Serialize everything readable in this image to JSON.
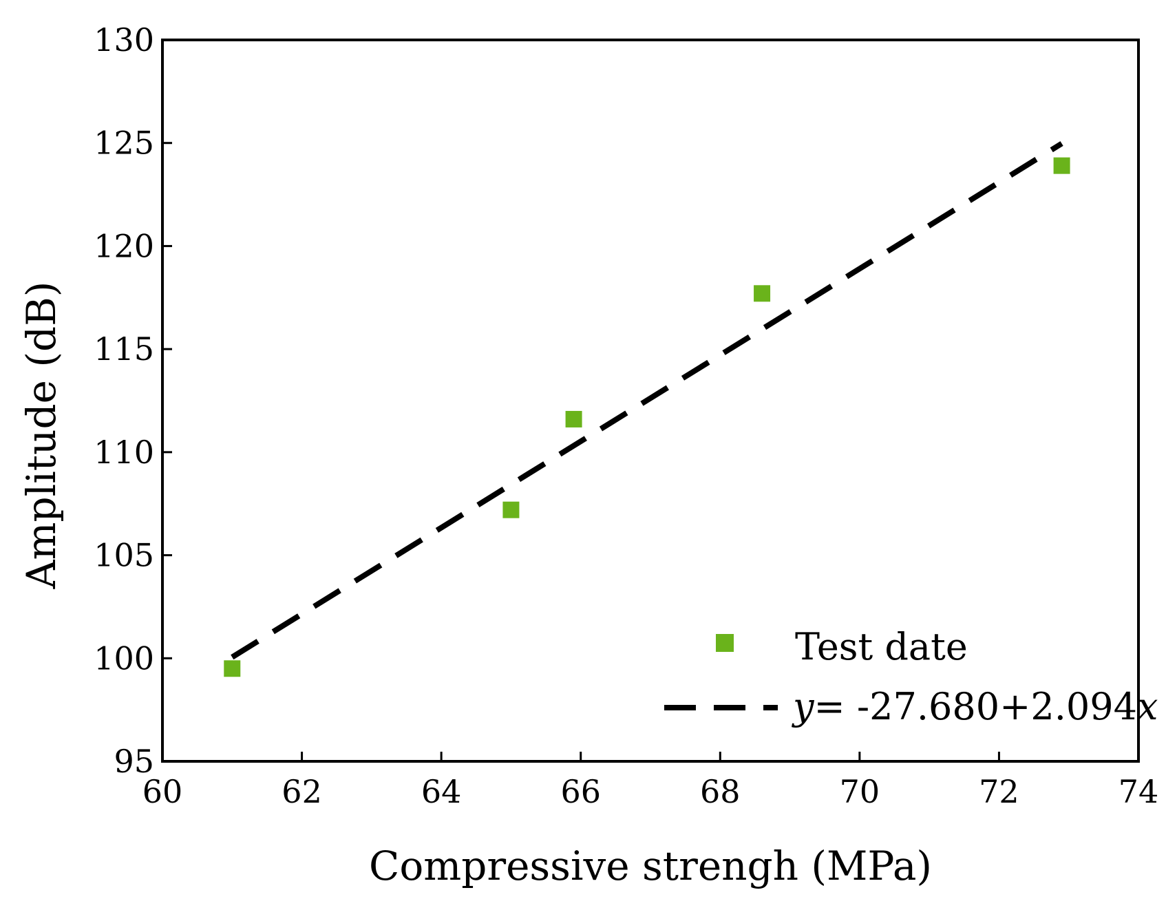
{
  "chart_data": {
    "type": "scatter",
    "xlabel": "Compressive strengh (MPa)",
    "ylabel": "Amplitude (dB)",
    "xlim": [
      60,
      74
    ],
    "ylim": [
      95,
      130
    ],
    "xticks": [
      "60",
      "62",
      "64",
      "66",
      "68",
      "70",
      "72",
      "74"
    ],
    "yticks": [
      "95",
      "100",
      "105",
      "110",
      "115",
      "120",
      "125",
      "130"
    ],
    "series": [
      {
        "name": "Test date",
        "kind": "scatter",
        "marker": "square",
        "color": "#6ab31b",
        "x": [
          61.0,
          65.0,
          65.9,
          68.6,
          72.9
        ],
        "y": [
          99.5,
          107.2,
          111.6,
          117.7,
          123.9
        ]
      },
      {
        "name": "fit",
        "kind": "line",
        "style": "dashed",
        "color": "#000000",
        "intercept": -27.68,
        "slope": 2.094,
        "x_range": [
          61.0,
          72.9
        ]
      }
    ],
    "legend": {
      "position": "bottom-right",
      "entries": [
        {
          "label": "Test date"
        },
        {
          "label_prefix": "y",
          "label_rest": "= -27.680+2.094",
          "label_suffix": "x"
        }
      ]
    }
  }
}
